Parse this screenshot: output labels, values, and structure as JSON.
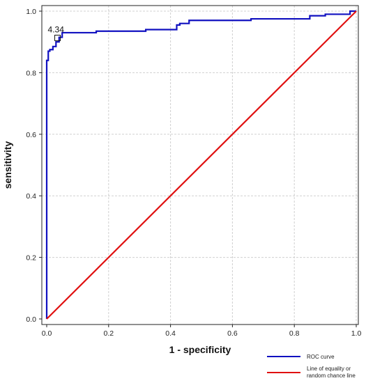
{
  "chart_data": {
    "type": "line",
    "title": "",
    "xlabel": "1 - specificity",
    "ylabel": "sensitivity",
    "xlim": [
      0,
      1
    ],
    "ylim": [
      0,
      1
    ],
    "xticks": [
      0.0,
      0.2,
      0.4,
      0.6,
      0.8,
      1.0
    ],
    "yticks": [
      0.0,
      0.2,
      0.4,
      0.6,
      0.8,
      1.0
    ],
    "xtick_labels": [
      "0.0",
      "0.2",
      "0.4",
      "0.6",
      "0.8",
      "1.0"
    ],
    "ytick_labels": [
      "0.0",
      "0.2",
      "0.4",
      "0.6",
      "0.8",
      "1.0"
    ],
    "grid": true,
    "legend_position": "bottom-right, outside plot",
    "series": [
      {
        "name": "ROC curve",
        "color": "#1010c0",
        "x": [
          0.0,
          0.0,
          0.005,
          0.005,
          0.01,
          0.01,
          0.02,
          0.02,
          0.03,
          0.03,
          0.04,
          0.04,
          0.05,
          0.05,
          0.16,
          0.16,
          0.32,
          0.32,
          0.42,
          0.42,
          0.43,
          0.43,
          0.46,
          0.46,
          0.66,
          0.66,
          0.85,
          0.85,
          0.9,
          0.9,
          0.98,
          0.98,
          1.0
        ],
        "y": [
          0.0,
          0.84,
          0.84,
          0.87,
          0.87,
          0.875,
          0.875,
          0.885,
          0.885,
          0.9,
          0.9,
          0.915,
          0.915,
          0.93,
          0.93,
          0.935,
          0.935,
          0.94,
          0.94,
          0.955,
          0.955,
          0.96,
          0.96,
          0.97,
          0.97,
          0.975,
          0.975,
          0.985,
          0.985,
          0.99,
          0.99,
          1.0,
          1.0
        ]
      },
      {
        "name": "Line of equality or random chance line",
        "color": "#e01010",
        "x": [
          0.0,
          1.0
        ],
        "y": [
          0.0,
          1.0
        ]
      }
    ],
    "annotations": [
      {
        "text": "4.34",
        "x": 0.035,
        "y": 0.913
      }
    ]
  }
}
